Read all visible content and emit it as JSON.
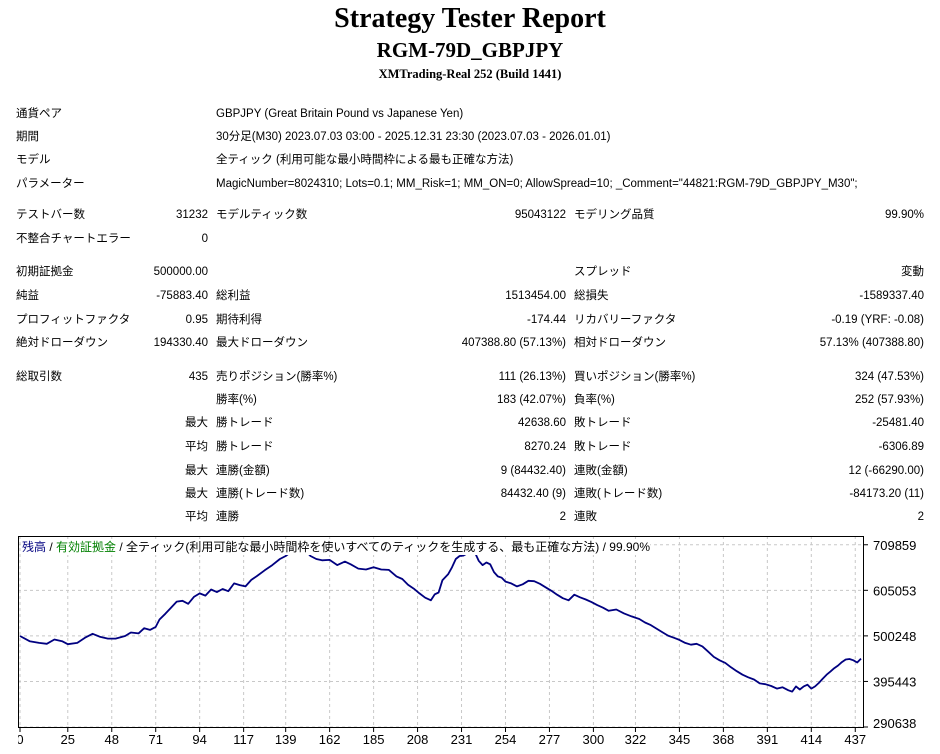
{
  "header": {
    "title": "Strategy Tester Report",
    "subtitle": "RGM-79D_GBPJPY",
    "server": "XMTrading-Real 252 (Build 1441)"
  },
  "settings": {
    "symbol_label": "通貨ペア",
    "symbol_value": "GBPJPY (Great Britain Pound vs Japanese Yen)",
    "period_label": "期間",
    "period_value": "30分足(M30) 2023.07.03 03:00 - 2025.12.31 23:30 (2023.07.03 - 2026.01.01)",
    "model_label": "モデル",
    "model_value": "全ティック (利用可能な最小時間枠による最も正確な方法)",
    "params_label": "パラメーター",
    "params_value": "MagicNumber=8024310; Lots=0.1; MM_Risk=1; MM_ON=0; AllowSpread=10; _Comment=\"44821:RGM-79D_GBPJPY_M30\";"
  },
  "stats": {
    "bars_label": "テストバー数",
    "bars_value": "31232",
    "ticks_label": "モデルティック数",
    "ticks_value": "95043122",
    "quality_label": "モデリング品質",
    "quality_value": "99.90%",
    "mismatch_label": "不整合チャートエラー",
    "mismatch_value": "0",
    "deposit_label": "初期証拠金",
    "deposit_value": "500000.00",
    "spread_label": "スプレッド",
    "spread_value": "変動",
    "net_label": "純益",
    "net_value": "-75883.40",
    "gross_profit_label": "総利益",
    "gross_profit_value": "1513454.00",
    "gross_loss_label": "総損失",
    "gross_loss_value": "-1589337.40",
    "pf_label": "プロフィットファクタ",
    "pf_value": "0.95",
    "expected_label": "期待利得",
    "expected_value": "-174.44",
    "recovery_label": "リカバリーファクタ",
    "recovery_value": "-0.19 (YRF: -0.08)",
    "abs_dd_label": "絶対ドローダウン",
    "abs_dd_value": "194330.40",
    "max_dd_label": "最大ドローダウン",
    "max_dd_value": "407388.80 (57.13%)",
    "rel_dd_label": "相対ドローダウン",
    "rel_dd_value": "57.13% (407388.80)",
    "total_trades_label": "総取引数",
    "total_trades_value": "435",
    "short_label": "売りポジション(勝率%)",
    "short_value": "111 (26.13%)",
    "long_label": "買いポジション(勝率%)",
    "long_value": "324 (47.53%)",
    "winrate_label": "勝率(%)",
    "winrate_value": "183 (42.07%)",
    "lossrate_label": "負率(%)",
    "lossrate_value": "252 (57.93%)",
    "q_max": "最大",
    "q_avg": "平均",
    "win_trade_label": "勝トレード",
    "largest_win_value": "42638.60",
    "loss_trade_label": "敗トレード",
    "largest_loss_value": "-25481.40",
    "avg_win_value": "8270.24",
    "avg_loss_value": "-6306.89",
    "cons_wins_amt_label": "連勝(金額)",
    "cons_wins_amt_value": "9 (84432.40)",
    "cons_losses_amt_label": "連敗(金額)",
    "cons_losses_amt_value": "12 (-66290.00)",
    "cons_wins_cnt_label": "連勝(トレード数)",
    "cons_wins_cnt_value": "84432.40 (9)",
    "cons_losses_cnt_label": "連敗(トレード数)",
    "cons_losses_cnt_value": "-84173.20 (11)",
    "avg_cons_wins_label": "連勝",
    "avg_cons_wins_value": "2",
    "avg_cons_losses_label": "連敗",
    "avg_cons_losses_value": "2"
  },
  "chart_legend": {
    "balance": "残高",
    "sep1": " / ",
    "equity": "有効証拠金",
    "rest": " / 全ティック(利用可能な最小時間枠を使いすべてのティックを生成する、最も正確な方法) / 99.90%",
    "balance_color": "#000080",
    "equity_color": "#008000"
  },
  "chart_data": {
    "type": "line",
    "xlim": [
      0,
      440
    ],
    "ylim": [
      290638,
      730000
    ],
    "x_ticks": [
      0,
      25,
      48,
      71,
      94,
      117,
      139,
      162,
      185,
      208,
      231,
      254,
      277,
      300,
      322,
      345,
      368,
      391,
      414,
      437
    ],
    "y_ticks": [
      290638,
      395443,
      500248,
      605053,
      709859
    ],
    "series": [
      {
        "color": "#000080",
        "points": [
          [
            0,
            500000
          ],
          [
            5,
            488000
          ],
          [
            10,
            484000
          ],
          [
            14,
            482000
          ],
          [
            18,
            492000
          ],
          [
            22,
            488000
          ],
          [
            25,
            481000
          ],
          [
            30,
            484000
          ],
          [
            34,
            496000
          ],
          [
            38,
            505000
          ],
          [
            42,
            498000
          ],
          [
            46,
            494000
          ],
          [
            50,
            494000
          ],
          [
            55,
            500000
          ],
          [
            58,
            508000
          ],
          [
            62,
            506000
          ],
          [
            65,
            518000
          ],
          [
            68,
            514000
          ],
          [
            71,
            521000
          ],
          [
            73,
            538000
          ],
          [
            76,
            551000
          ],
          [
            79,
            565000
          ],
          [
            82,
            579000
          ],
          [
            85,
            581000
          ],
          [
            88,
            574000
          ],
          [
            91,
            590000
          ],
          [
            94,
            598000
          ],
          [
            97,
            593000
          ],
          [
            100,
            607000
          ],
          [
            103,
            601000
          ],
          [
            106,
            608000
          ],
          [
            109,
            603000
          ],
          [
            112,
            621000
          ],
          [
            115,
            617000
          ],
          [
            118,
            614000
          ],
          [
            121,
            629000
          ],
          [
            124,
            638000
          ],
          [
            128,
            651000
          ],
          [
            132,
            663000
          ],
          [
            136,
            677000
          ],
          [
            139,
            684000
          ],
          [
            141,
            691000
          ],
          [
            144,
            707000
          ],
          [
            147,
            708000
          ],
          [
            149,
            698000
          ],
          [
            152,
            684000
          ],
          [
            155,
            677000
          ],
          [
            158,
            674000
          ],
          [
            162,
            675000
          ],
          [
            166,
            663000
          ],
          [
            170,
            671000
          ],
          [
            173,
            665000
          ],
          [
            177,
            655000
          ],
          [
            181,
            653000
          ],
          [
            185,
            658000
          ],
          [
            189,
            653000
          ],
          [
            193,
            652000
          ],
          [
            197,
            637000
          ],
          [
            200,
            631000
          ],
          [
            203,
            618000
          ],
          [
            206,
            609000
          ],
          [
            209,
            598000
          ],
          [
            212,
            588000
          ],
          [
            215,
            582000
          ],
          [
            217,
            596000
          ],
          [
            219,
            600000
          ],
          [
            221,
            628000
          ],
          [
            224,
            642000
          ],
          [
            226,
            658000
          ],
          [
            228,
            677000
          ],
          [
            230,
            684000
          ],
          [
            232,
            685000
          ],
          [
            234,
            690000
          ],
          [
            236,
            697000
          ],
          [
            238,
            692000
          ],
          [
            240,
            673000
          ],
          [
            242,
            663000
          ],
          [
            244,
            669000
          ],
          [
            246,
            665000
          ],
          [
            248,
            647000
          ],
          [
            250,
            637000
          ],
          [
            252,
            634000
          ],
          [
            254,
            625000
          ],
          [
            257,
            621000
          ],
          [
            260,
            614000
          ],
          [
            263,
            619000
          ],
          [
            266,
            627000
          ],
          [
            269,
            626000
          ],
          [
            272,
            620000
          ],
          [
            275,
            612000
          ],
          [
            278,
            604000
          ],
          [
            281,
            595000
          ],
          [
            284,
            587000
          ],
          [
            287,
            582000
          ],
          [
            290,
            595000
          ],
          [
            293,
            589000
          ],
          [
            296,
            584000
          ],
          [
            299,
            578000
          ],
          [
            302,
            571000
          ],
          [
            305,
            565000
          ],
          [
            308,
            558000
          ],
          [
            312,
            561000
          ],
          [
            316,
            552000
          ],
          [
            320,
            545000
          ],
          [
            324,
            539000
          ],
          [
            327,
            531000
          ],
          [
            330,
            525000
          ],
          [
            333,
            517000
          ],
          [
            336,
            509000
          ],
          [
            339,
            501000
          ],
          [
            342,
            496000
          ],
          [
            345,
            491000
          ],
          [
            348,
            484000
          ],
          [
            351,
            480000
          ],
          [
            354,
            482000
          ],
          [
            357,
            476000
          ],
          [
            360,
            464000
          ],
          [
            363,
            452000
          ],
          [
            366,
            444000
          ],
          [
            369,
            438000
          ],
          [
            372,
            428000
          ],
          [
            375,
            419000
          ],
          [
            378,
            411000
          ],
          [
            381,
            405000
          ],
          [
            384,
            400000
          ],
          [
            387,
            391000
          ],
          [
            390,
            389000
          ],
          [
            393,
            385000
          ],
          [
            396,
            379000
          ],
          [
            399,
            382000
          ],
          [
            402,
            375000
          ],
          [
            404,
            372000
          ],
          [
            406,
            384000
          ],
          [
            408,
            377000
          ],
          [
            410,
            384000
          ],
          [
            412,
            388000
          ],
          [
            414,
            379000
          ],
          [
            416,
            384000
          ],
          [
            418,
            392000
          ],
          [
            420,
            402000
          ],
          [
            422,
            411000
          ],
          [
            424,
            418000
          ],
          [
            426,
            426000
          ],
          [
            428,
            432000
          ],
          [
            430,
            440000
          ],
          [
            432,
            446000
          ],
          [
            434,
            447000
          ],
          [
            436,
            444000
          ],
          [
            438,
            439000
          ],
          [
            440,
            448000
          ]
        ]
      }
    ]
  }
}
